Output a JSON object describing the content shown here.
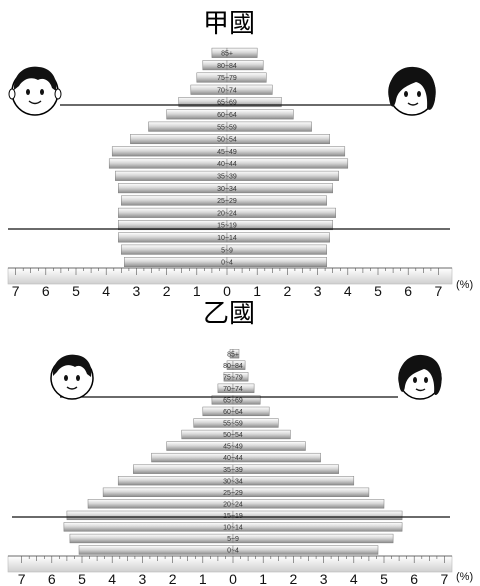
{
  "chart_data": [
    {
      "type": "bar",
      "title": "甲國",
      "unit": "(%)",
      "categories": [
        "0~4",
        "5~9",
        "10~14",
        "15~19",
        "20~24",
        "25~29",
        "30~34",
        "35~39",
        "40~44",
        "45~49",
        "50~54",
        "55~59",
        "60~64",
        "65~69",
        "70~74",
        "75~79",
        "80~84",
        "85+"
      ],
      "series": [
        {
          "values": [
            3.4,
            3.5,
            3.6,
            3.6,
            3.6,
            3.5,
            3.6,
            3.7,
            3.9,
            3.8,
            3.2,
            2.6,
            2.0,
            1.6,
            1.2,
            1.0,
            0.8,
            0.5
          ]
        },
        {
          "values": [
            3.3,
            3.3,
            3.4,
            3.5,
            3.6,
            3.3,
            3.5,
            3.7,
            4.0,
            3.9,
            3.4,
            2.8,
            2.2,
            1.8,
            1.5,
            1.3,
            1.2,
            1.0
          ]
        }
      ],
      "xlim": [
        -7,
        7
      ],
      "ticks": [
        "7",
        "6",
        "5",
        "4",
        "3",
        "2",
        "1",
        "0",
        "1",
        "2",
        "3",
        "4",
        "5",
        "6",
        "7"
      ]
    },
    {
      "type": "bar",
      "title": "乙國",
      "unit": "(%)",
      "categories": [
        "0~4",
        "5~9",
        "10~14",
        "15~19",
        "20~24",
        "25~29",
        "30~34",
        "35~39",
        "40~44",
        "45~49",
        "50~54",
        "55~59",
        "60~64",
        "65~69",
        "70~74",
        "75~79",
        "80~84",
        "85+"
      ],
      "series": [
        {
          "values": [
            5.1,
            5.4,
            5.6,
            5.5,
            4.8,
            4.3,
            3.8,
            3.3,
            2.7,
            2.2,
            1.7,
            1.3,
            1.0,
            0.7,
            0.5,
            0.3,
            0.2,
            0.1
          ]
        },
        {
          "values": [
            4.8,
            5.3,
            5.6,
            5.6,
            5.0,
            4.5,
            4.0,
            3.5,
            2.9,
            2.4,
            1.9,
            1.5,
            1.2,
            0.9,
            0.7,
            0.5,
            0.4,
            0.2
          ]
        }
      ],
      "xlim": [
        -7,
        7
      ],
      "ticks": [
        "7",
        "6",
        "5",
        "4",
        "3",
        "2",
        "1",
        "0",
        "1",
        "2",
        "3",
        "4",
        "5",
        "6",
        "7"
      ]
    }
  ]
}
